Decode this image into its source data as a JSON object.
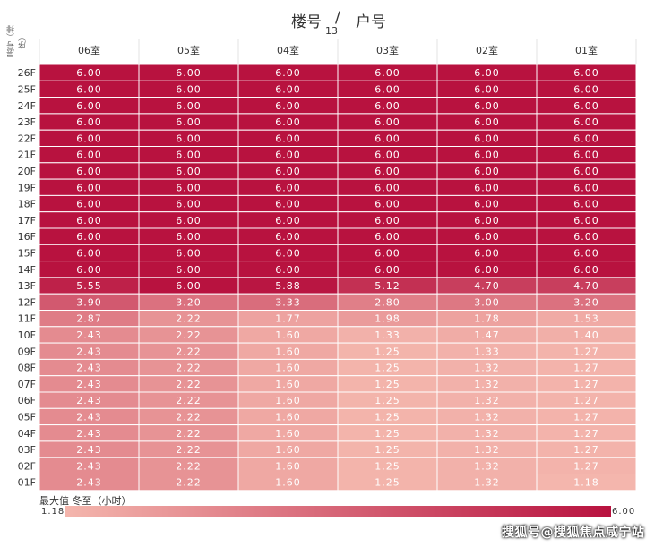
{
  "title": {
    "left": "楼号",
    "sep": "/",
    "right": "户号",
    "value": "13"
  },
  "row_header": "层号（排序）",
  "chart_data": {
    "type": "heatmap",
    "columns": [
      "06室",
      "05室",
      "04室",
      "03室",
      "02室",
      "01室"
    ],
    "rows": [
      "26F",
      "25F",
      "24F",
      "23F",
      "22F",
      "21F",
      "20F",
      "19F",
      "18F",
      "17F",
      "16F",
      "15F",
      "14F",
      "13F",
      "12F",
      "11F",
      "10F",
      "09F",
      "08F",
      "07F",
      "06F",
      "05F",
      "04F",
      "03F",
      "02F",
      "01F"
    ],
    "values": [
      [
        6.0,
        6.0,
        6.0,
        6.0,
        6.0,
        6.0
      ],
      [
        6.0,
        6.0,
        6.0,
        6.0,
        6.0,
        6.0
      ],
      [
        6.0,
        6.0,
        6.0,
        6.0,
        6.0,
        6.0
      ],
      [
        6.0,
        6.0,
        6.0,
        6.0,
        6.0,
        6.0
      ],
      [
        6.0,
        6.0,
        6.0,
        6.0,
        6.0,
        6.0
      ],
      [
        6.0,
        6.0,
        6.0,
        6.0,
        6.0,
        6.0
      ],
      [
        6.0,
        6.0,
        6.0,
        6.0,
        6.0,
        6.0
      ],
      [
        6.0,
        6.0,
        6.0,
        6.0,
        6.0,
        6.0
      ],
      [
        6.0,
        6.0,
        6.0,
        6.0,
        6.0,
        6.0
      ],
      [
        6.0,
        6.0,
        6.0,
        6.0,
        6.0,
        6.0
      ],
      [
        6.0,
        6.0,
        6.0,
        6.0,
        6.0,
        6.0
      ],
      [
        6.0,
        6.0,
        6.0,
        6.0,
        6.0,
        6.0
      ],
      [
        6.0,
        6.0,
        6.0,
        6.0,
        6.0,
        6.0
      ],
      [
        5.55,
        6.0,
        5.88,
        5.12,
        4.7,
        4.7
      ],
      [
        3.9,
        3.2,
        3.33,
        2.8,
        3.0,
        3.2
      ],
      [
        2.87,
        2.22,
        1.77,
        1.98,
        1.78,
        1.53
      ],
      [
        2.43,
        2.22,
        1.6,
        1.33,
        1.47,
        1.4
      ],
      [
        2.43,
        2.22,
        1.6,
        1.25,
        1.33,
        1.27
      ],
      [
        2.43,
        2.22,
        1.6,
        1.25,
        1.32,
        1.27
      ],
      [
        2.43,
        2.22,
        1.6,
        1.25,
        1.32,
        1.27
      ],
      [
        2.43,
        2.22,
        1.6,
        1.25,
        1.32,
        1.27
      ],
      [
        2.43,
        2.22,
        1.6,
        1.25,
        1.32,
        1.27
      ],
      [
        2.43,
        2.22,
        1.6,
        1.25,
        1.32,
        1.27
      ],
      [
        2.43,
        2.22,
        1.6,
        1.25,
        1.32,
        1.27
      ],
      [
        2.43,
        2.22,
        1.6,
        1.25,
        1.32,
        1.27
      ],
      [
        2.43,
        2.22,
        1.6,
        1.25,
        1.32,
        1.18
      ]
    ],
    "color_range": [
      1.18,
      6.0
    ],
    "color_low": "#f4b6ad",
    "color_high": "#b8123f"
  },
  "legend": {
    "title": "最大值 冬至（小时）",
    "min": "1.18",
    "max": "6.00"
  },
  "watermark": "搜狐号@搜狐焦点咸宁站"
}
